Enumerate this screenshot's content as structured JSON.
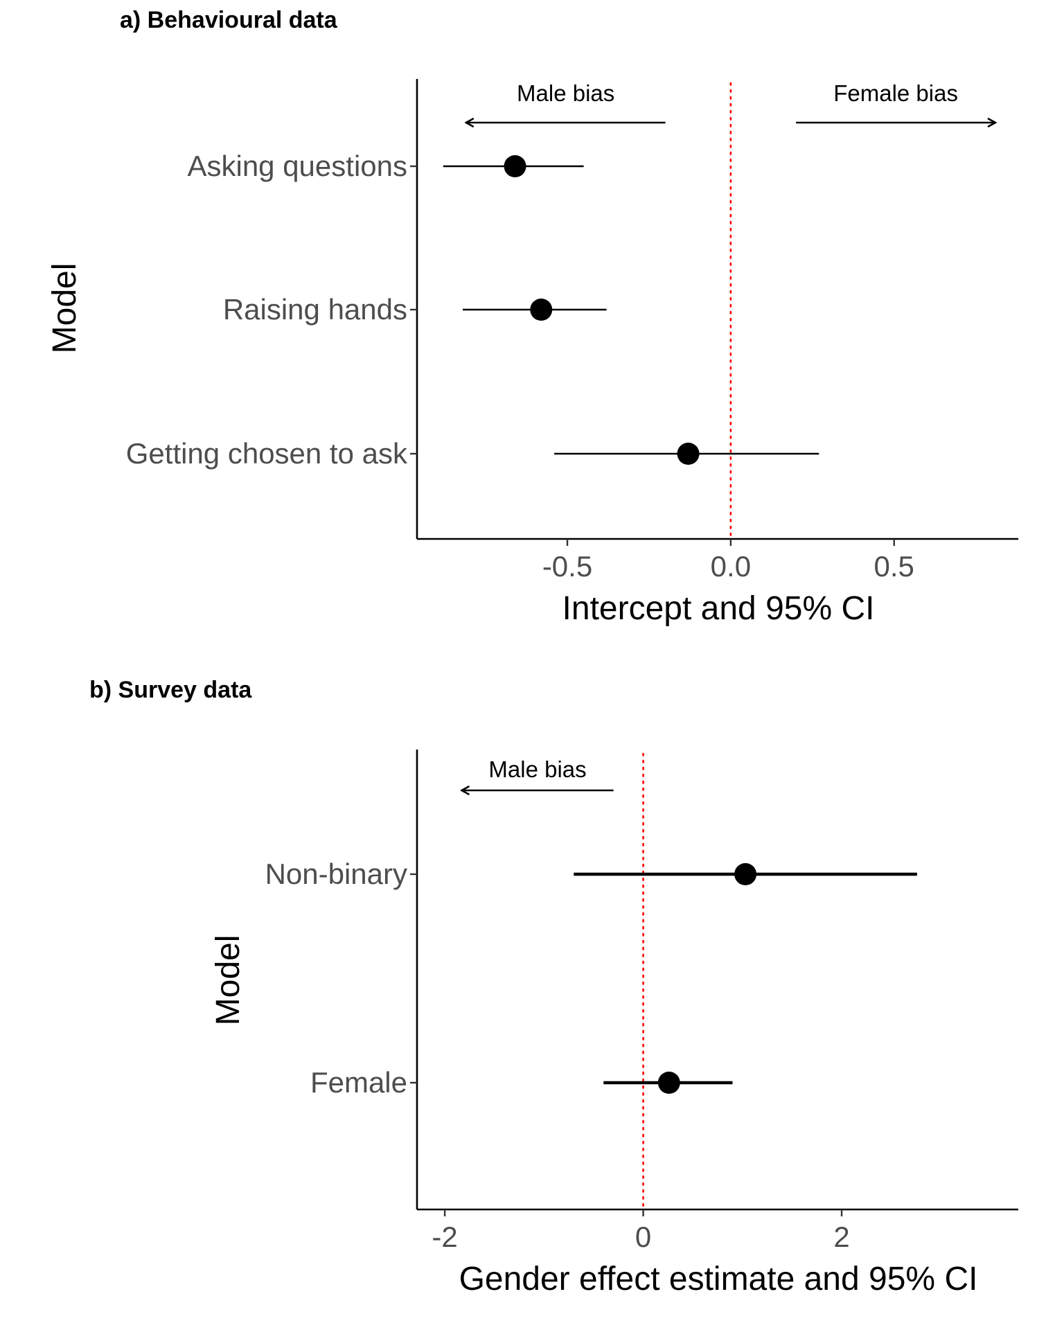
{
  "chart_data": [
    {
      "type": "forest",
      "title": "a) Behavioural data",
      "xlabel": "Intercept and 95% CI",
      "ylabel": "Model",
      "xlim": [
        -0.96,
        0.88
      ],
      "xticks": [
        -0.5,
        0.0,
        0.5
      ],
      "xtick_labels": [
        "-0.5",
        "0.0",
        "0.5"
      ],
      "reference_line": {
        "x": 0,
        "style": "dotted",
        "color": "#ff0000"
      },
      "categories": [
        "Asking questions",
        "Raising hands",
        "Getting chosen to ask"
      ],
      "estimates": [
        -0.66,
        -0.58,
        -0.13
      ],
      "ci_low": [
        -0.88,
        -0.82,
        -0.54
      ],
      "ci_high": [
        -0.45,
        -0.38,
        0.27
      ],
      "annotations": [
        {
          "text": "Male bias",
          "arrow_from": -0.2,
          "arrow_to": -0.81,
          "direction": "left"
        },
        {
          "text": "Female bias",
          "arrow_from": 0.2,
          "arrow_to": 0.81,
          "direction": "right"
        }
      ],
      "grid": false
    },
    {
      "type": "forest",
      "title": "b) Survey data",
      "xlabel": "Gender effect estimate and 95% CI",
      "ylabel": "Model",
      "xlim": [
        -2.28,
        3.78
      ],
      "xticks": [
        -2,
        0,
        2
      ],
      "xtick_labels": [
        "-2",
        "0",
        "2"
      ],
      "reference_line": {
        "x": 0,
        "style": "dotted",
        "color": "#ff0000"
      },
      "categories": [
        "Non-binary",
        "Female"
      ],
      "estimates": [
        1.03,
        0.26
      ],
      "ci_low": [
        -0.7,
        -0.4
      ],
      "ci_high": [
        2.76,
        0.9
      ],
      "annotations": [
        {
          "text": "Male bias",
          "arrow_from": -0.3,
          "arrow_to": -1.83,
          "direction": "left"
        }
      ],
      "grid": false
    }
  ]
}
